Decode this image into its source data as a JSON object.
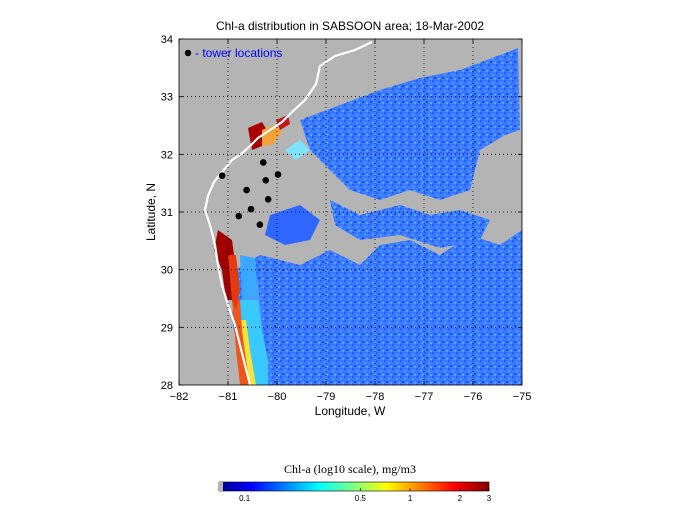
{
  "map": {
    "title": "Chl-a distribution in SABSOON area; 18-Mar-2002",
    "xlabel": "Longitude, W",
    "ylabel": "Latitude, N",
    "xlim": [
      -82,
      -75
    ],
    "ylim": [
      28,
      34
    ],
    "xticks": [
      -82,
      -81,
      -80,
      -79,
      -78,
      -77,
      -76,
      -75
    ],
    "yticks": [
      28,
      29,
      30,
      31,
      32,
      33,
      34
    ],
    "grid": true,
    "land_color": "#b4b4b4",
    "legend": {
      "text": "- tower locations",
      "color": "#0000ff",
      "marker_color": "#000000"
    },
    "towers": [
      {
        "lon": -81.12,
        "lat": 31.63
      },
      {
        "lon": -80.28,
        "lat": 31.86
      },
      {
        "lon": -79.98,
        "lat": 31.65
      },
      {
        "lon": -80.23,
        "lat": 31.55
      },
      {
        "lon": -80.62,
        "lat": 31.38
      },
      {
        "lon": -80.18,
        "lat": 31.22
      },
      {
        "lon": -80.53,
        "lat": 31.05
      },
      {
        "lon": -80.78,
        "lat": 30.93
      },
      {
        "lon": -80.35,
        "lat": 30.78
      }
    ]
  },
  "colorbar": {
    "title": "Chl-a (log10 scale), mg/m3",
    "tick_labels": [
      "0.1",
      "0.5",
      "1",
      "2",
      "3"
    ],
    "tick_values": [
      0.1,
      0.5,
      1,
      2,
      3
    ],
    "range": [
      0.07,
      3
    ],
    "colormap": "jet"
  }
}
